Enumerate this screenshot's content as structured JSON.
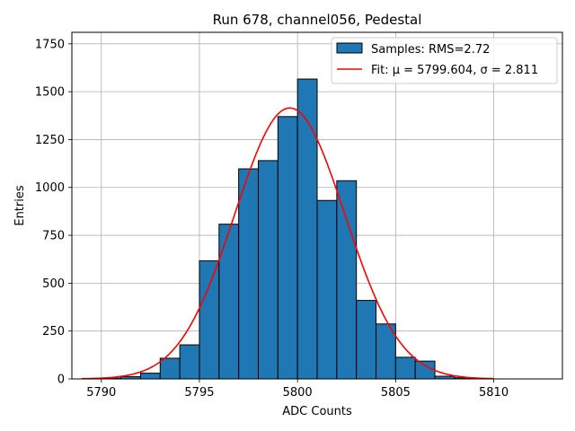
{
  "chart_data": {
    "type": "bar",
    "title": "Run 678, channel056, Pedestal",
    "xlabel": "ADC Counts",
    "ylabel": "Entries",
    "xlim": [
      5788.5,
      5813.5
    ],
    "ylim": [
      0,
      1810
    ],
    "xticks": [
      5790,
      5795,
      5800,
      5805,
      5810
    ],
    "yticks": [
      0,
      250,
      500,
      750,
      1000,
      1250,
      1500,
      1750
    ],
    "grid": true,
    "legend_position": "top-right",
    "bins": [
      {
        "x0": 5790,
        "x1": 5791,
        "count": 4
      },
      {
        "x0": 5791,
        "x1": 5792,
        "count": 12
      },
      {
        "x0": 5792,
        "x1": 5793,
        "count": 30
      },
      {
        "x0": 5793,
        "x1": 5794,
        "count": 108
      },
      {
        "x0": 5794,
        "x1": 5795,
        "count": 178
      },
      {
        "x0": 5795,
        "x1": 5796,
        "count": 617
      },
      {
        "x0": 5796,
        "x1": 5797,
        "count": 808
      },
      {
        "x0": 5797,
        "x1": 5798,
        "count": 1097
      },
      {
        "x0": 5798,
        "x1": 5799,
        "count": 1140
      },
      {
        "x0": 5799,
        "x1": 5800,
        "count": 1370
      },
      {
        "x0": 5800,
        "x1": 5801,
        "count": 1566
      },
      {
        "x0": 5801,
        "x1": 5802,
        "count": 932
      },
      {
        "x0": 5802,
        "x1": 5803,
        "count": 1035
      },
      {
        "x0": 5803,
        "x1": 5804,
        "count": 410
      },
      {
        "x0": 5804,
        "x1": 5805,
        "count": 287
      },
      {
        "x0": 5805,
        "x1": 5806,
        "count": 113
      },
      {
        "x0": 5806,
        "x1": 5807,
        "count": 93
      },
      {
        "x0": 5807,
        "x1": 5808,
        "count": 14
      },
      {
        "x0": 5808,
        "x1": 5809,
        "count": 6
      }
    ],
    "series": [
      {
        "name": "Samples: RMS=2.72",
        "kind": "histogram",
        "color": "#1f77b4"
      },
      {
        "name": "Fit: μ = 5799.604, σ = 2.811",
        "kind": "line",
        "color": "#ff0000",
        "mu": 5799.604,
        "sigma": 2.811,
        "peak": 1415,
        "x_range": [
          5789,
          5810
        ]
      }
    ]
  }
}
